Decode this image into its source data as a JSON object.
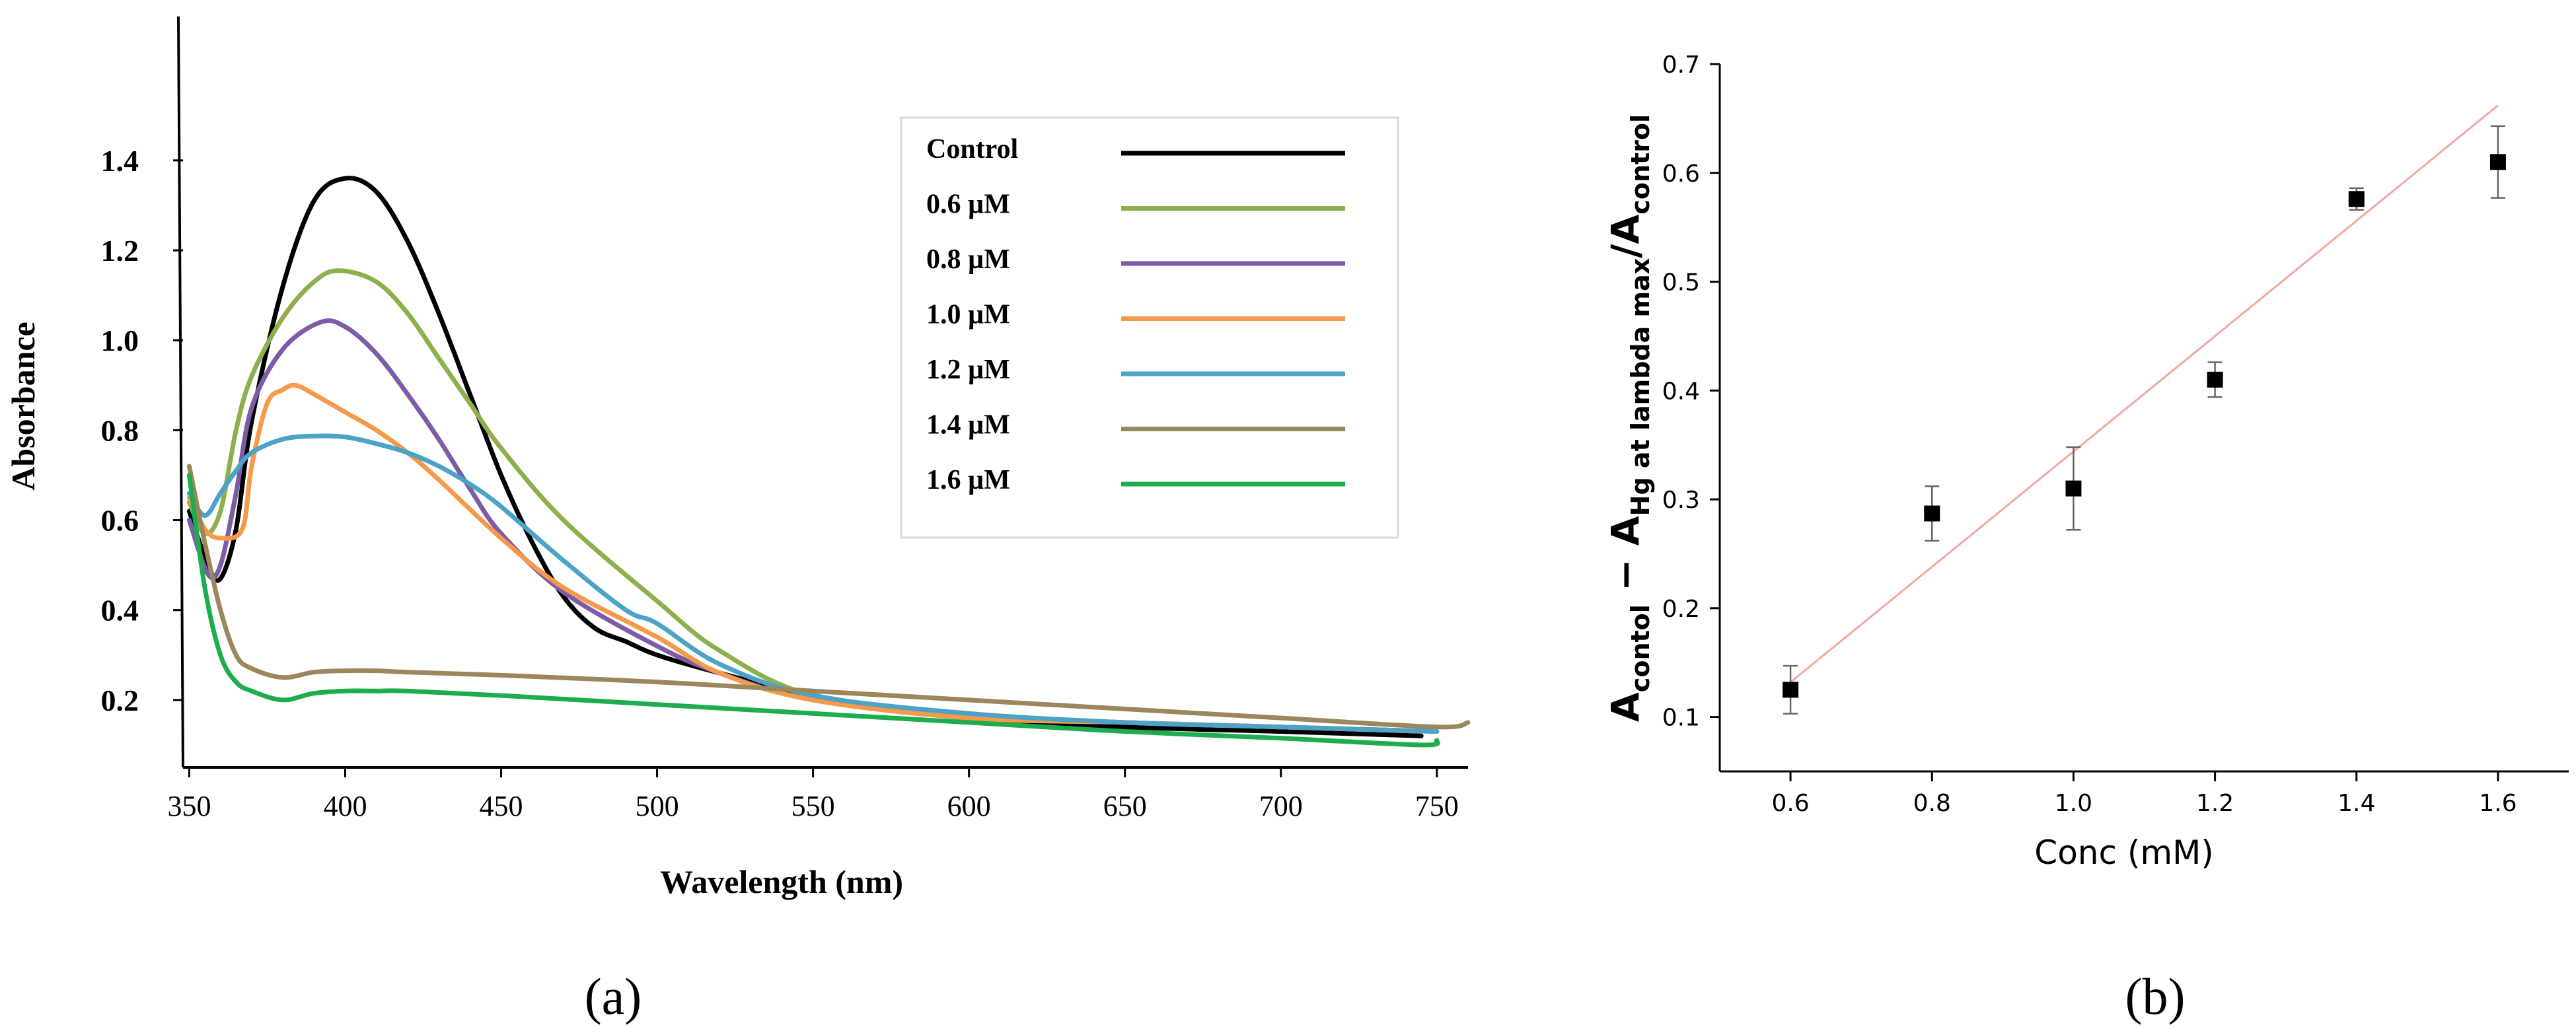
{
  "chart_data": [
    {
      "type": "line",
      "panel_label": "(a)",
      "xlabel": "Wavelength (nm)",
      "ylabel": "Absorbance",
      "xlim": [
        348,
        760
      ],
      "ylim": [
        0.05,
        1.72
      ],
      "xticks": [
        350,
        400,
        450,
        500,
        550,
        600,
        650,
        700,
        750
      ],
      "yticks": [
        0.2,
        0.4,
        0.6,
        0.8,
        1.0,
        1.2,
        1.4
      ],
      "ytick_labels": [
        "0.2",
        "0.4",
        "0.6",
        "0.8",
        "1.0",
        "1.2",
        "1.4"
      ],
      "legend_position": "top-right",
      "series": [
        {
          "name": "Control",
          "color": "#000000",
          "x": [
            350,
            356,
            360,
            365,
            370,
            380,
            390,
            400,
            410,
            420,
            430,
            440,
            450,
            460,
            470,
            480,
            490,
            500,
            520,
            550,
            600,
            650,
            700,
            745
          ],
          "y": [
            0.62,
            0.5,
            0.47,
            0.58,
            0.82,
            1.12,
            1.31,
            1.36,
            1.33,
            1.22,
            1.06,
            0.88,
            0.7,
            0.55,
            0.43,
            0.36,
            0.33,
            0.3,
            0.26,
            0.21,
            0.16,
            0.14,
            0.13,
            0.12
          ]
        },
        {
          "name": "0.6 µM",
          "color": "#8DB04E",
          "x": [
            350,
            355,
            360,
            365,
            370,
            380,
            390,
            398,
            410,
            420,
            430,
            440,
            450,
            470,
            500,
            520,
            550,
            600,
            650,
            700,
            750
          ],
          "y": [
            0.64,
            0.57,
            0.62,
            0.8,
            0.92,
            1.05,
            1.13,
            1.155,
            1.13,
            1.06,
            0.96,
            0.86,
            0.76,
            0.6,
            0.42,
            0.31,
            0.21,
            0.17,
            0.15,
            0.14,
            0.13
          ]
        },
        {
          "name": "0.8 µM",
          "color": "#7D5BA6",
          "x": [
            350,
            356,
            360,
            365,
            370,
            380,
            392,
            400,
            410,
            420,
            430,
            440,
            450,
            470,
            500,
            520,
            550,
            600,
            650,
            700,
            750
          ],
          "y": [
            0.6,
            0.48,
            0.5,
            0.66,
            0.85,
            0.98,
            1.04,
            1.03,
            0.97,
            0.88,
            0.78,
            0.67,
            0.57,
            0.44,
            0.32,
            0.26,
            0.2,
            0.16,
            0.15,
            0.14,
            0.13
          ]
        },
        {
          "name": "1.0 µM",
          "color": "#F59A4A",
          "x": [
            350,
            355,
            360,
            367,
            370,
            375,
            380,
            384,
            390,
            400,
            410,
            420,
            430,
            450,
            470,
            500,
            520,
            550,
            600,
            650,
            700,
            750
          ],
          "y": [
            0.65,
            0.58,
            0.56,
            0.58,
            0.72,
            0.86,
            0.89,
            0.9,
            0.88,
            0.84,
            0.8,
            0.75,
            0.69,
            0.56,
            0.45,
            0.34,
            0.26,
            0.2,
            0.16,
            0.15,
            0.14,
            0.13
          ]
        },
        {
          "name": "1.2 µM",
          "color": "#4BA3C8",
          "x": [
            350,
            355,
            360,
            365,
            370,
            380,
            390,
            400,
            410,
            420,
            430,
            440,
            450,
            470,
            490,
            500,
            520,
            550,
            600,
            650,
            700,
            750
          ],
          "y": [
            0.66,
            0.61,
            0.66,
            0.71,
            0.75,
            0.78,
            0.787,
            0.785,
            0.77,
            0.75,
            0.72,
            0.68,
            0.63,
            0.51,
            0.4,
            0.37,
            0.28,
            0.21,
            0.17,
            0.15,
            0.14,
            0.13
          ]
        },
        {
          "name": "1.4 µM",
          "color": "#9C865C",
          "x": [
            350,
            355,
            360,
            365,
            370,
            380,
            390,
            400,
            410,
            420,
            450,
            500,
            550,
            600,
            650,
            700,
            750,
            760
          ],
          "y": [
            0.72,
            0.55,
            0.4,
            0.3,
            0.27,
            0.25,
            0.262,
            0.265,
            0.265,
            0.262,
            0.255,
            0.24,
            0.22,
            0.2,
            0.18,
            0.16,
            0.14,
            0.15
          ]
        },
        {
          "name": "1.6 µM",
          "color": "#1EAD4E",
          "x": [
            350,
            355,
            360,
            365,
            370,
            380,
            390,
            400,
            410,
            420,
            450,
            500,
            550,
            600,
            650,
            700,
            745,
            750
          ],
          "y": [
            0.7,
            0.45,
            0.3,
            0.24,
            0.22,
            0.2,
            0.215,
            0.22,
            0.22,
            0.22,
            0.21,
            0.19,
            0.17,
            0.15,
            0.13,
            0.115,
            0.1,
            0.11
          ]
        }
      ]
    },
    {
      "type": "scatter",
      "panel_label": "(b)",
      "xlabel": "Conc (mM)",
      "ylabel_parts": {
        "a1": "A",
        "s1": "contol",
        "minus": " − ",
        "a2": "A",
        "s2": "Hg at lambda max",
        "slash": "/",
        "a3": "A",
        "s3": "control"
      },
      "xlim": [
        0.5,
        1.7
      ],
      "ylim": [
        0.05,
        0.7
      ],
      "xticks": [
        0.6,
        0.8,
        1.0,
        1.2,
        1.4,
        1.6
      ],
      "xtick_labels": [
        "0.6",
        "0.8",
        "1.0",
        "1.2",
        "1.4",
        "1.6"
      ],
      "yticks": [
        0.1,
        0.2,
        0.3,
        0.4,
        0.5,
        0.6,
        0.7
      ],
      "ytick_labels": [
        "0.1",
        "0.2",
        "0.3",
        "0.4",
        "0.5",
        "0.6",
        "0.7"
      ],
      "points": [
        {
          "x": 0.6,
          "y": 0.125,
          "err": 0.022
        },
        {
          "x": 0.8,
          "y": 0.287,
          "err": 0.025
        },
        {
          "x": 1.0,
          "y": 0.31,
          "err": 0.038
        },
        {
          "x": 1.2,
          "y": 0.41,
          "err": 0.016
        },
        {
          "x": 1.4,
          "y": 0.576,
          "err": 0.01
        },
        {
          "x": 1.6,
          "y": 0.61,
          "err": 0.033
        }
      ],
      "fit_line": {
        "x": [
          0.6,
          1.6
        ],
        "y": [
          0.132,
          0.662
        ],
        "color": "#F4A6A0"
      }
    }
  ]
}
